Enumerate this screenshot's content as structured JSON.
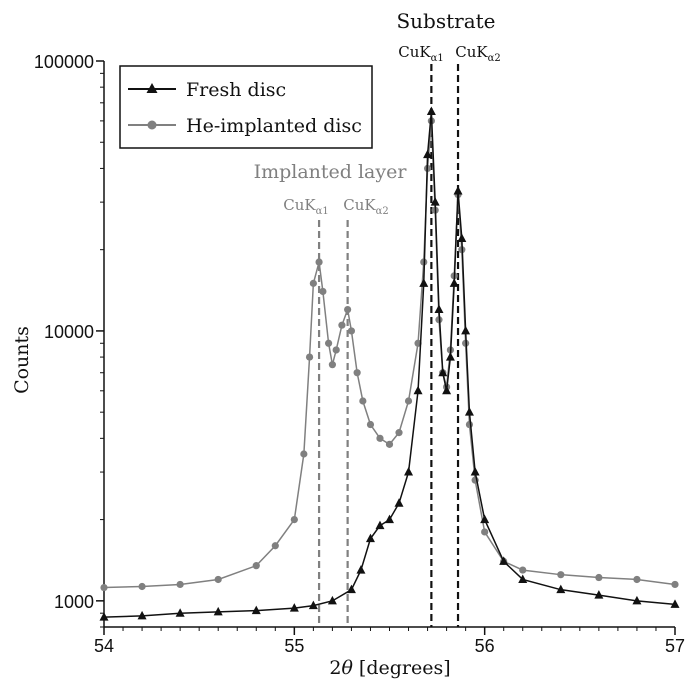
{
  "chart_data": {
    "type": "scatter",
    "scale": "log",
    "xlabel": "2θ [degrees]",
    "xlabel_main": "2",
    "xlabel_theta": "θ",
    "xlabel_rest": " [degrees]",
    "ylabel": "Counts",
    "xlim": [
      54,
      57
    ],
    "ylim": [
      800,
      100000
    ],
    "x_ticks": [
      54,
      55,
      56,
      57
    ],
    "x_tick_labels": [
      "54",
      "55",
      "56",
      "57"
    ],
    "y_ticks": [
      1000,
      10000,
      100000
    ],
    "y_tick_labels": [
      "1000",
      "10000",
      "100000"
    ],
    "grid": false,
    "legend_position": "top-left",
    "legend": [
      {
        "label": "Fresh disc",
        "marker": "triangle",
        "color": "#111111"
      },
      {
        "label": "He-implanted disc",
        "marker": "circle",
        "color": "#808080"
      }
    ],
    "vlines": [
      {
        "x": 55.13,
        "color": "#808080",
        "style": "dashed"
      },
      {
        "x": 55.28,
        "color": "#808080",
        "style": "dashed"
      },
      {
        "x": 55.72,
        "color": "#111111",
        "style": "dashed"
      },
      {
        "x": 55.86,
        "color": "#111111",
        "style": "dashed"
      }
    ],
    "annotations": {
      "implanted_layer": "Implanted layer",
      "substrate": "Substrate",
      "cuk": "CuK",
      "alpha1": "α1",
      "alpha2": "α2"
    },
    "series": [
      {
        "name": "Fresh disc",
        "marker": "triangle",
        "color": "#111111",
        "x": [
          54.0,
          54.2,
          54.4,
          54.6,
          54.8,
          55.0,
          55.1,
          55.2,
          55.3,
          55.35,
          55.4,
          55.45,
          55.5,
          55.55,
          55.6,
          55.65,
          55.68,
          55.7,
          55.72,
          55.74,
          55.76,
          55.78,
          55.8,
          55.82,
          55.84,
          55.86,
          55.88,
          55.9,
          55.92,
          55.95,
          56.0,
          56.1,
          56.2,
          56.4,
          56.6,
          56.8,
          57.0
        ],
        "y": [
          870,
          880,
          900,
          910,
          920,
          940,
          960,
          1000,
          1100,
          1300,
          1700,
          1900,
          2000,
          2300,
          3000,
          6000,
          15000,
          45000,
          65000,
          30000,
          12000,
          7000,
          6000,
          8000,
          15000,
          33000,
          22000,
          10000,
          5000,
          3000,
          2000,
          1400,
          1200,
          1100,
          1050,
          1000,
          970
        ]
      },
      {
        "name": "He-implanted disc",
        "marker": "circle",
        "color": "#808080",
        "x": [
          54.0,
          54.2,
          54.4,
          54.6,
          54.8,
          54.9,
          55.0,
          55.05,
          55.08,
          55.1,
          55.13,
          55.15,
          55.18,
          55.2,
          55.22,
          55.25,
          55.28,
          55.3,
          55.33,
          55.36,
          55.4,
          55.45,
          55.5,
          55.55,
          55.6,
          55.65,
          55.68,
          55.7,
          55.72,
          55.74,
          55.76,
          55.78,
          55.8,
          55.82,
          55.84,
          55.86,
          55.88,
          55.9,
          55.92,
          55.95,
          56.0,
          56.1,
          56.2,
          56.4,
          56.6,
          56.8,
          57.0
        ],
        "y": [
          1120,
          1130,
          1150,
          1200,
          1350,
          1600,
          2000,
          3500,
          8000,
          15000,
          18000,
          14000,
          9000,
          7500,
          8500,
          10500,
          12000,
          10000,
          7000,
          5500,
          4500,
          4000,
          3800,
          4200,
          5500,
          9000,
          18000,
          40000,
          60000,
          28000,
          11000,
          7000,
          6200,
          8500,
          16000,
          32000,
          20000,
          9000,
          4500,
          2800,
          1800,
          1400,
          1300,
          1250,
          1220,
          1200,
          1150
        ]
      }
    ]
  }
}
